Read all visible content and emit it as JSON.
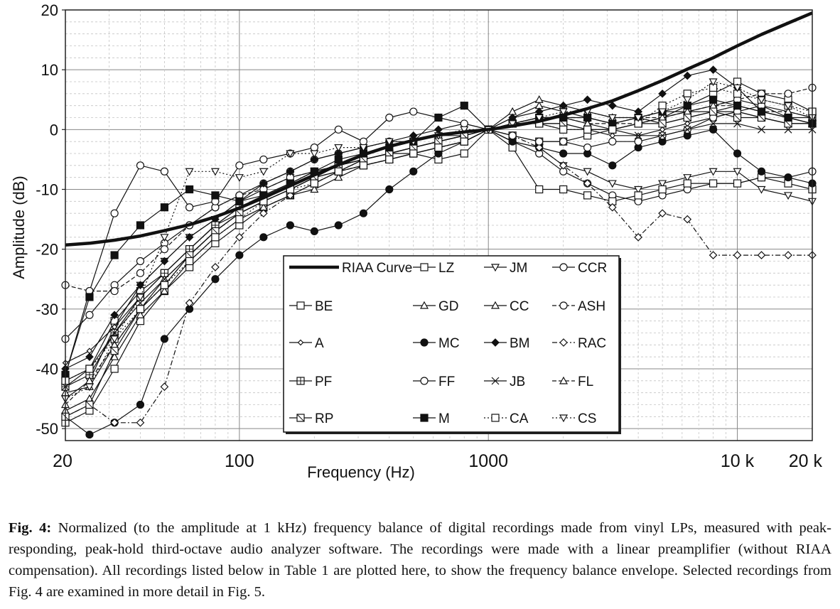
{
  "chart_data": {
    "type": "line",
    "title": "",
    "xlabel": "Frequency (Hz)",
    "ylabel": "Amplitude (dB)",
    "x_scale": "log",
    "xlim": [
      20,
      20000
    ],
    "ylim": [
      -52,
      20
    ],
    "grid": true,
    "x_ticks": [
      20,
      100,
      1000,
      10000,
      20000
    ],
    "x_tick_labels": [
      "20",
      "100",
      "1000",
      "10 k",
      "20 k"
    ],
    "y_ticks": [
      20,
      10,
      0,
      -10,
      -20,
      -30,
      -40,
      -50
    ],
    "y_tick_labels": [
      "20",
      "10",
      "0",
      "-10",
      "-20",
      "-30",
      "-40",
      "-50"
    ],
    "legend_position": "bottom-center",
    "x": [
      20,
      25,
      31.5,
      40,
      50,
      63,
      80,
      100,
      125,
      160,
      200,
      250,
      315,
      400,
      500,
      630,
      800,
      1000,
      1250,
      1600,
      2000,
      2500,
      3150,
      4000,
      5000,
      6300,
      8000,
      10000,
      12500,
      16000,
      20000
    ],
    "series": [
      {
        "name": "RIAA Curve",
        "marker": "none",
        "dash": "solid",
        "width": 4.5,
        "values": [
          -19.3,
          -19.0,
          -18.5,
          -17.8,
          -16.9,
          -15.9,
          -14.6,
          -13.1,
          -11.4,
          -9.4,
          -7.6,
          -5.9,
          -4.2,
          -2.8,
          -1.8,
          -0.9,
          -0.4,
          0,
          0.6,
          1.4,
          2.4,
          3.5,
          4.8,
          6.5,
          8.2,
          10.1,
          12.0,
          14.0,
          15.9,
          17.8,
          19.5
        ]
      },
      {
        "name": "LZ",
        "marker": "open-square",
        "dash": "solid",
        "values": [
          -42,
          -40,
          -32,
          -27,
          -24,
          -20,
          -16,
          -14,
          -12,
          -10,
          -8,
          -6,
          -5,
          -4,
          -4,
          -5,
          -4,
          0,
          -1,
          -2,
          -2,
          -1,
          0,
          1,
          2,
          4,
          6,
          8,
          6,
          5,
          3
        ]
      },
      {
        "name": "JM",
        "marker": "open-triangle-down",
        "dash": "solid",
        "values": [
          -45,
          -42,
          -33,
          -26,
          -22,
          -18,
          -15,
          -12,
          -10,
          -8,
          -7,
          -6,
          -5,
          -4,
          -3,
          -2,
          -1,
          0,
          -2,
          -3,
          -6,
          -7,
          -9,
          -10,
          -9,
          -8,
          -7,
          -7,
          -10,
          -11,
          -12
        ]
      },
      {
        "name": "CCR",
        "marker": "open-circle",
        "dash": "solid",
        "values": [
          -35,
          -31,
          -26,
          -22,
          -19,
          -16,
          -13,
          -11,
          -9,
          -7,
          -5,
          -4,
          -3,
          -2,
          -2,
          -1,
          -1,
          0,
          -2,
          -4,
          -7,
          -9,
          -11,
          -12,
          -11,
          -10,
          -9,
          -9,
          -8,
          -8,
          -7
        ]
      },
      {
        "name": "BE",
        "marker": "open-square",
        "dash": "solid",
        "values": [
          -49,
          -47,
          -40,
          -32,
          -27,
          -23,
          -19,
          -16,
          -13,
          -11,
          -9,
          -7,
          -6,
          -5,
          -4,
          -3,
          -2,
          0,
          -3,
          -10,
          -10,
          -11,
          -12,
          -11,
          -10,
          -9,
          -9,
          -9,
          -8,
          -9,
          -10
        ]
      },
      {
        "name": "GD",
        "marker": "open-triangle-up",
        "dash": "solid",
        "values": [
          -47,
          -45,
          -38,
          -31,
          -27,
          -22,
          -18,
          -15,
          -13,
          -11,
          -10,
          -8,
          -6,
          -5,
          -4,
          -3,
          -2,
          0,
          2,
          4,
          3,
          2,
          1,
          2,
          3,
          3,
          4,
          5,
          4,
          3,
          2
        ]
      },
      {
        "name": "CC",
        "marker": "open-triangle-up",
        "dash": "solid",
        "values": [
          -44,
          -43,
          -36,
          -30,
          -25,
          -21,
          -17,
          -14,
          -12,
          -10,
          -8,
          -7,
          -5,
          -4,
          -3,
          -2,
          -1,
          0,
          3,
          5,
          4,
          3,
          2,
          2,
          1,
          2,
          3,
          3,
          2,
          1,
          1
        ]
      },
      {
        "name": "ASH",
        "marker": "open-circle",
        "dash": "dashed",
        "values": [
          -26,
          -27,
          -27,
          -24,
          -20,
          -16,
          -13,
          -11,
          -10,
          -8,
          -7,
          -6,
          -5,
          -4,
          -3,
          -2,
          -1,
          0,
          1,
          2,
          2,
          2,
          1,
          1,
          2,
          3,
          4,
          5,
          6,
          6,
          7
        ]
      },
      {
        "name": "A",
        "marker": "open-diamond-small",
        "dash": "solid",
        "values": [
          -39,
          -37,
          -33,
          -28,
          -24,
          -20,
          -16,
          -13,
          -11,
          -9,
          -7,
          -6,
          -5,
          -4,
          -3,
          -2,
          -1,
          0,
          1,
          1,
          0,
          0,
          -1,
          -1,
          0,
          1,
          2,
          3,
          2,
          1,
          1
        ]
      },
      {
        "name": "MC",
        "marker": "filled-circle",
        "dash": "solid",
        "values": [
          -48,
          -51,
          -49,
          -46,
          -35,
          -30,
          -25,
          -21,
          -18,
          -16,
          -17,
          -16,
          -14,
          -10,
          -7,
          -4,
          -2,
          0,
          -2,
          -3,
          -4,
          -4,
          -6,
          -3,
          -2,
          -1,
          0,
          -4,
          -7,
          -8,
          -9
        ]
      },
      {
        "name": "BM",
        "marker": "filled-diamond",
        "dash": "solid",
        "values": [
          -40,
          -38,
          -31,
          -26,
          -22,
          -18,
          -15,
          -12,
          -9,
          -7,
          -5,
          -4,
          -3,
          -2,
          -1,
          0,
          1,
          0,
          2,
          3,
          4,
          5,
          4,
          3,
          6,
          9,
          10,
          7,
          3,
          2,
          1
        ]
      },
      {
        "name": "RAC",
        "marker": "open-diamond",
        "dash": "dashdot",
        "values": [
          -48,
          -46,
          -49,
          -49,
          -43,
          -29,
          -23,
          -18,
          -14,
          -11,
          -9,
          -7,
          -6,
          -5,
          -4,
          -3,
          -2,
          0,
          -1,
          -3,
          -6,
          -9,
          -13,
          -18,
          -14,
          -15,
          -21,
          -21,
          -21,
          -21,
          -21
        ]
      },
      {
        "name": "PF",
        "marker": "square-plus",
        "dash": "solid",
        "values": [
          -43,
          -41,
          -34,
          -28,
          -24,
          -20,
          -16,
          -13,
          -11,
          -9,
          -8,
          -6,
          -5,
          -4,
          -3,
          -2,
          -1,
          0,
          1,
          1,
          1,
          0,
          0,
          1,
          2,
          3,
          3,
          4,
          3,
          2,
          2
        ]
      },
      {
        "name": "FF",
        "marker": "open-circle",
        "dash": "solid",
        "values": [
          -41,
          -27,
          -14,
          -6,
          -7,
          -13,
          -12,
          -6,
          -5,
          -4,
          -3,
          0,
          -2,
          2,
          3,
          2,
          1,
          0,
          -1,
          -2,
          -2,
          -3,
          -2,
          -2,
          -1,
          0,
          2,
          3,
          4,
          2,
          1
        ]
      },
      {
        "name": "JB",
        "marker": "cross",
        "dash": "solid",
        "values": [
          -43,
          -40,
          -34,
          -29,
          -25,
          -21,
          -17,
          -14,
          -12,
          -10,
          -8,
          -7,
          -5,
          -4,
          -3,
          -2,
          -1,
          0,
          1,
          2,
          2,
          1,
          0,
          -1,
          -1,
          0,
          1,
          1,
          0,
          0,
          0
        ]
      },
      {
        "name": "FL",
        "marker": "open-triangle-up",
        "dash": "dashed",
        "values": [
          -46,
          -42,
          -36,
          -30,
          -26,
          -21,
          -17,
          -14,
          -12,
          -10,
          -8,
          -7,
          -6,
          -5,
          -4,
          -3,
          -2,
          0,
          1,
          2,
          2,
          1,
          1,
          2,
          2,
          3,
          4,
          4,
          3,
          3,
          2
        ]
      },
      {
        "name": "RP",
        "marker": "square-slash",
        "dash": "solid",
        "values": [
          -48,
          -46,
          -37,
          -30,
          -26,
          -21,
          -17,
          -14,
          -12,
          -10,
          -8,
          -6,
          -5,
          -4,
          -3,
          -2,
          -1,
          0,
          1,
          1,
          1,
          0,
          0,
          1,
          1,
          2,
          3,
          2,
          2,
          1,
          1
        ]
      },
      {
        "name": "M",
        "marker": "filled-square",
        "dash": "solid",
        "values": [
          -41,
          -28,
          -21,
          -16,
          -13,
          -10,
          -11,
          -12,
          -11,
          -9,
          -7,
          -5,
          -4,
          -3,
          -2,
          2,
          4,
          0,
          1,
          2,
          2,
          2,
          1,
          2,
          3,
          4,
          5,
          4,
          3,
          2,
          1
        ]
      },
      {
        "name": "CA",
        "marker": "open-square",
        "dash": "dotted",
        "values": [
          -42,
          -40,
          -35,
          -30,
          -26,
          -22,
          -18,
          -15,
          -12,
          -10,
          -9,
          -7,
          -6,
          -5,
          -4,
          -3,
          -2,
          0,
          1,
          1,
          0,
          0,
          0,
          1,
          4,
          6,
          7,
          6,
          5,
          4,
          3
        ]
      },
      {
        "name": "CS",
        "marker": "open-triangle-down",
        "dash": "dotted",
        "values": [
          -45,
          -43,
          -35,
          -28,
          -18,
          -7,
          -7,
          -8,
          -7,
          -4,
          -4,
          -3,
          -3,
          -2,
          -2,
          -1,
          0,
          0,
          1,
          2,
          3,
          3,
          2,
          2,
          3,
          5,
          8,
          7,
          5,
          4,
          2
        ]
      }
    ],
    "legend_order": [
      "RIAA Curve",
      "LZ",
      "JM",
      "CCR",
      "BE",
      "GD",
      "CC",
      "ASH",
      "A",
      "MC",
      "BM",
      "RAC",
      "PF",
      "FF",
      "JB",
      "FL",
      "RP",
      "M",
      "CA",
      "CS"
    ]
  },
  "caption": {
    "label": "Fig. 4:",
    "text": " Normalized (to the amplitude at 1 kHz) frequency balance of digital recordings made from vinyl LPs, measured with peak-responding, peak-hold third-octave audio analyzer software. The recordings were made with a linear preamplifier (without RIAA compensation). All recordings listed below in Table 1 are plotted here, to show the frequency balance envelope. Selected recordings from Fig. 4 are examined in more detail in Fig. 5."
  }
}
